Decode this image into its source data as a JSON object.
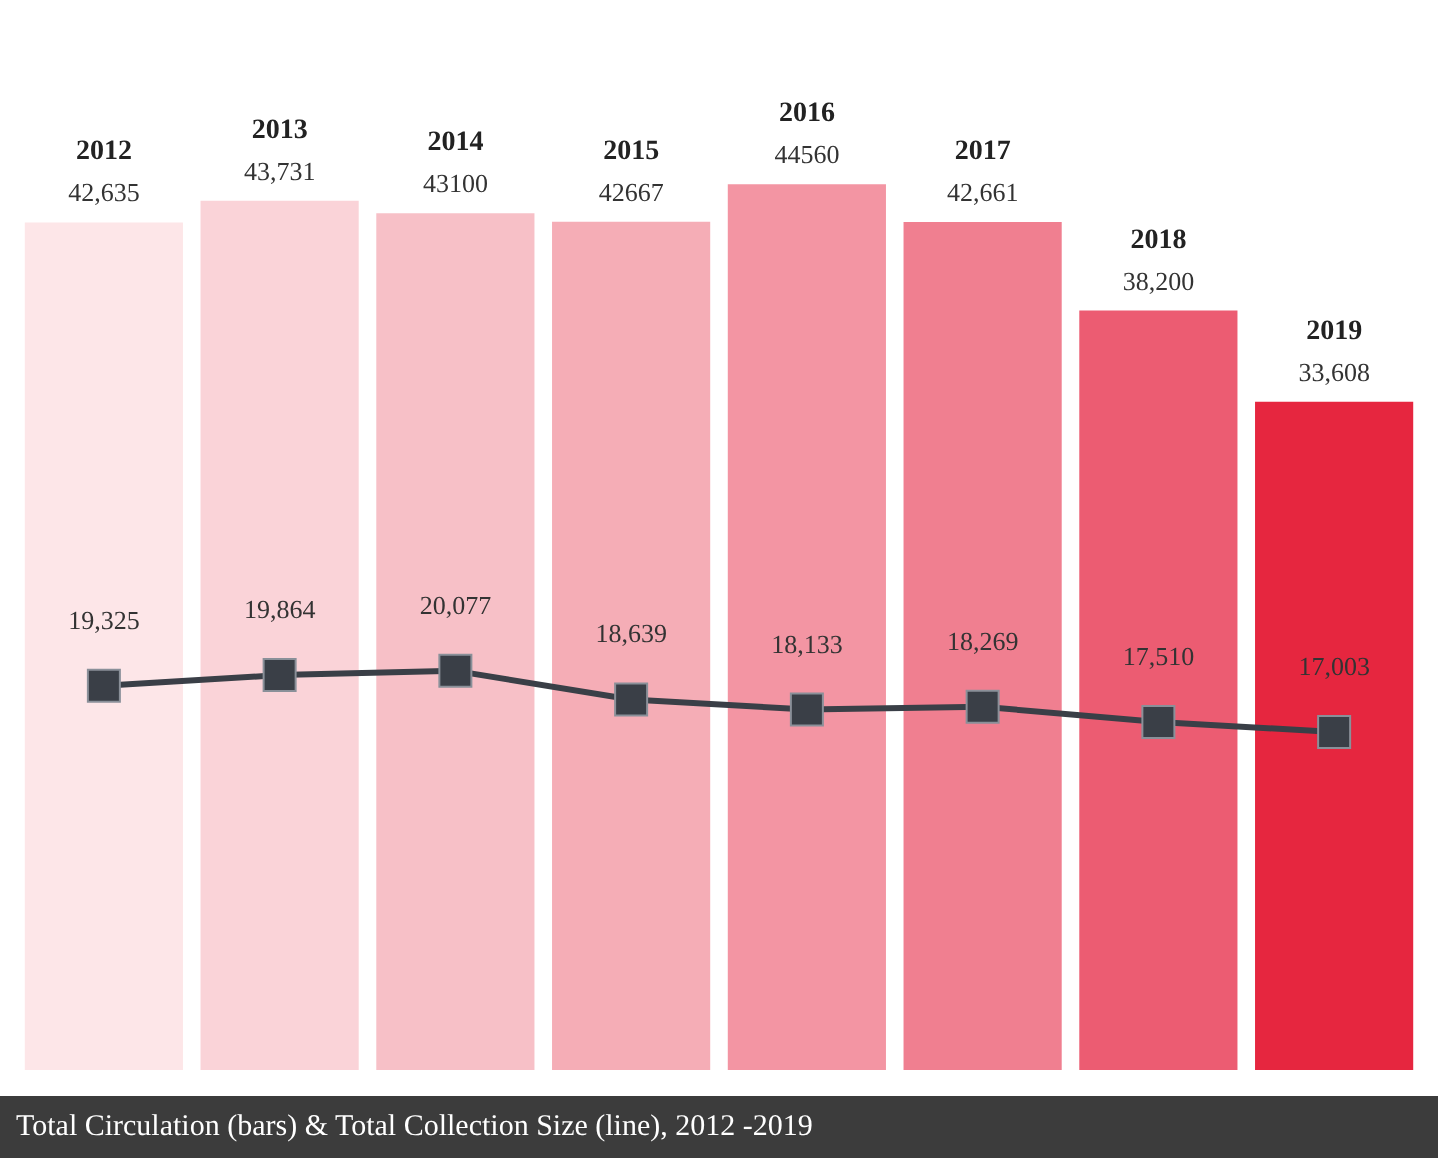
{
  "chart_data": {
    "type": "bar",
    "title": "Total Circulation (bars) & Total Collection Size (line), 2012 -2019",
    "categories": [
      "2012",
      "2013",
      "2014",
      "2015",
      "2016",
      "2017",
      "2018",
      "2019"
    ],
    "series": [
      {
        "colors": [
          "#fde6e8",
          "#fad3d8",
          "#f7c0c7",
          "#f5adb6",
          "#f395a3",
          "#f07f90",
          "#ec5c72",
          "#e6263f"
        ],
        "values": [
          42635,
          43731,
          43100,
          42667,
          44560,
          42661,
          38200,
          33608
        ],
        "value_labels": [
          "42,635",
          "43,731",
          "43100",
          "42667",
          "44560",
          "42,661",
          "38,200",
          "33,608"
        ]
      },
      {
        "type": "line",
        "color": "#3a3f47",
        "marker": "square",
        "line_style": "solid",
        "values": [
          19325,
          19864,
          20077,
          18639,
          18133,
          18269,
          17510,
          17003
        ],
        "value_labels": [
          "19,325",
          "19,864",
          "20,077",
          "18,639",
          "18,133",
          "18,269",
          "17,510",
          "17,003"
        ]
      }
    ]
  }
}
